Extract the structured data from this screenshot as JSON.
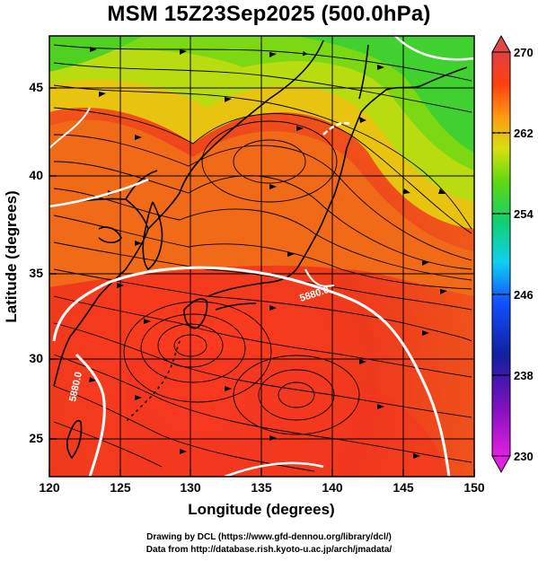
{
  "title": "MSM 15Z23Sep2025 (500.0hPa)",
  "xaxis": {
    "label": "Longitude (degrees)",
    "ticks": [
      120,
      125,
      130,
      135,
      140,
      145,
      150
    ],
    "range": [
      120,
      150
    ]
  },
  "yaxis": {
    "label": "Latitude  (degrees)",
    "ticks": [
      25,
      30,
      35,
      40,
      45
    ],
    "range": [
      22.5,
      47.5
    ]
  },
  "colorbar": {
    "ticks": [
      230,
      238,
      246,
      254,
      262,
      270
    ],
    "range": [
      230,
      270
    ],
    "colors": [
      "#e020e0",
      "#1010a0",
      "#1040ff",
      "#10d0f0",
      "#10d060",
      "#70e010",
      "#e0e010",
      "#ff9010",
      "#ff3010",
      "#e03030"
    ]
  },
  "contour_labels": [
    "5880.0",
    "5880.0"
  ],
  "credits": {
    "line1": "Drawing by DCL (https://www.gfd-dennou.org/library/dcl/)",
    "line2": "Data from http://database.rish.kyoto-u.ac.jp/arch/jmadata/"
  }
}
